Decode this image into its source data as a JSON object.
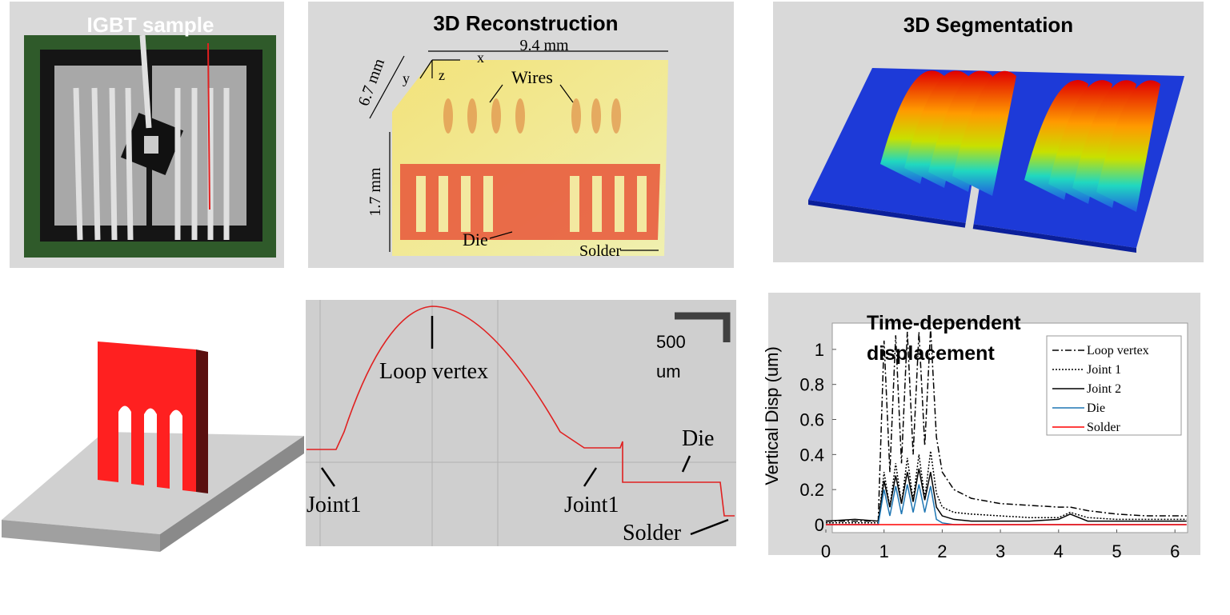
{
  "panels": {
    "igbt_sample": {
      "title": "IGBT sample"
    },
    "reconstruction": {
      "title": "3D Reconstruction",
      "labels": {
        "width": "9.4 mm",
        "depth": "6.7 mm",
        "height": "1.7 mm",
        "x": "x",
        "y": "y",
        "z": "z",
        "wires": "Wires",
        "die": "Die",
        "solder": "Solder"
      }
    },
    "segmentation": {
      "title": "3D Segmentation"
    },
    "cross_section": {
      "scale_value": "500",
      "scale_unit": "um",
      "labels": [
        "Loop vertex",
        "Joint1",
        "Joint1",
        "Die",
        "Solder"
      ]
    }
  },
  "chart_data": {
    "type": "line",
    "title": "Time-dependent displacement",
    "ylabel": "Vertical Disp (um)",
    "x": [
      0,
      0.5,
      0.9,
      1.0,
      1.1,
      1.2,
      1.3,
      1.4,
      1.5,
      1.6,
      1.7,
      1.8,
      1.9,
      2.0,
      2.2,
      2.5,
      3,
      3.5,
      4,
      4.2,
      4.5,
      5,
      5.5,
      6,
      6.2
    ],
    "series": [
      {
        "name": "Loop vertex",
        "color": "#000000",
        "dash": "8 3 2 3",
        "values": [
          0.02,
          0.02,
          0.02,
          1.05,
          0.3,
          1.08,
          0.35,
          1.1,
          0.4,
          1.1,
          0.45,
          1.12,
          0.5,
          0.3,
          0.2,
          0.15,
          0.12,
          0.11,
          0.1,
          0.1,
          0.08,
          0.06,
          0.05,
          0.05,
          0.05
        ]
      },
      {
        "name": "Joint 1",
        "color": "#000000",
        "dash": "2 2",
        "values": [
          0.01,
          0.01,
          0.01,
          0.3,
          0.1,
          0.35,
          0.12,
          0.38,
          0.14,
          0.4,
          0.15,
          0.42,
          0.18,
          0.1,
          0.07,
          0.06,
          0.05,
          0.04,
          0.04,
          0.07,
          0.04,
          0.03,
          0.03,
          0.03,
          0.03
        ]
      },
      {
        "name": "Joint 2",
        "color": "#000000",
        "dash": "none",
        "values": [
          0.02,
          0.03,
          0.02,
          0.25,
          0.1,
          0.28,
          0.12,
          0.3,
          0.13,
          0.32,
          0.14,
          0.3,
          0.1,
          0.05,
          0.03,
          0.02,
          0.02,
          0.02,
          0.03,
          0.06,
          0.02,
          0.02,
          0.02,
          0.02,
          0.02
        ]
      },
      {
        "name": "Die",
        "color": "#1f77b4",
        "dash": "none",
        "values": [
          0,
          0,
          0,
          0.2,
          0.05,
          0.22,
          0.06,
          0.23,
          0.07,
          0.23,
          0.07,
          0.22,
          0.03,
          0.01,
          0,
          0,
          0,
          0,
          0,
          0,
          0,
          0,
          0,
          0,
          0
        ]
      },
      {
        "name": "Solder",
        "color": "#ff0000",
        "dash": "none",
        "values": [
          0,
          0,
          0,
          0,
          0,
          0,
          0,
          0,
          0,
          0,
          0,
          0,
          0,
          0,
          0,
          0,
          0,
          0,
          0,
          0,
          0,
          0,
          0,
          0,
          0
        ]
      }
    ],
    "xlim": [
      0,
      6.2
    ],
    "ylim": [
      0,
      1.15
    ],
    "xticks": [
      0,
      1,
      2,
      3,
      4,
      5,
      6
    ],
    "yticks": [
      0,
      0.2,
      0.4,
      0.6,
      0.8,
      1
    ],
    "legend": "upper right"
  }
}
